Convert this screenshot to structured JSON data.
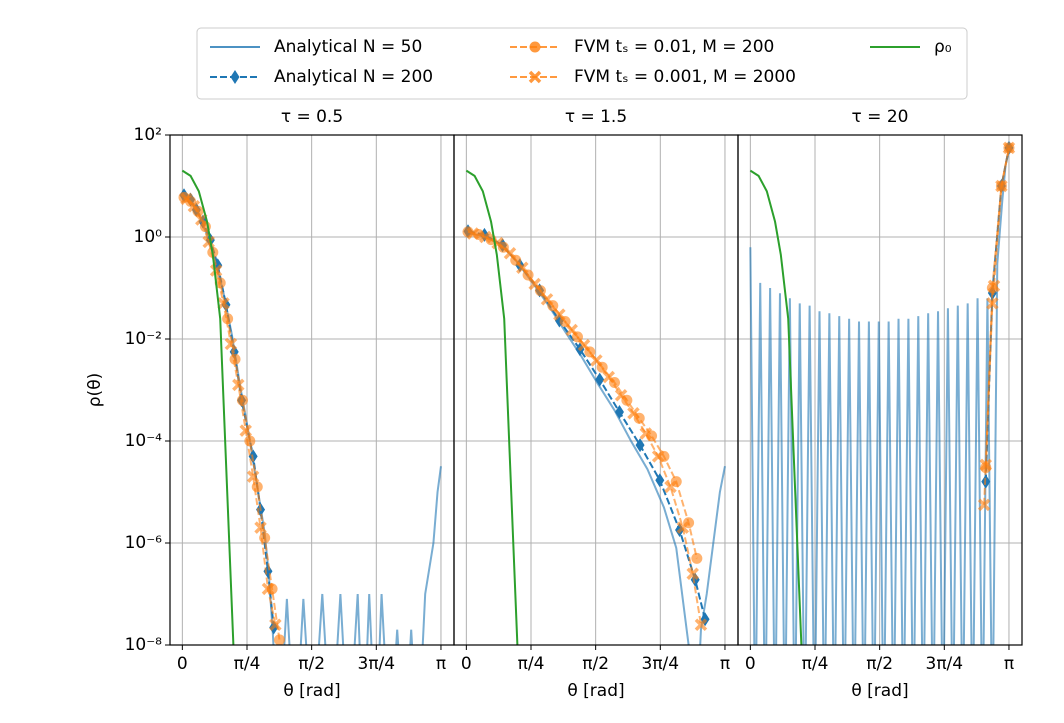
{
  "chart_data": [
    {
      "type": "line",
      "title": "τ = 0.5",
      "xlabel": "θ [rad]",
      "ylabel": "ρ(θ)",
      "yscale": "log",
      "grid": true,
      "xlim": [
        -0.15,
        3.3
      ],
      "ylim": [
        1e-08,
        100
      ],
      "xticks": [
        0,
        {
          "value": 0.7854,
          "label": "π/4"
        },
        {
          "value": 1.5708,
          "label": "π/2"
        },
        {
          "value": 2.3562,
          "label": "3π/4"
        },
        {
          "value": 3.1416,
          "label": "π"
        }
      ],
      "yticks": [
        {
          "value": 1e-08,
          "label": "10⁻⁸"
        },
        {
          "value": 1e-06,
          "label": "10⁻⁶"
        },
        {
          "value": 0.0001,
          "label": "10⁻⁴"
        },
        {
          "value": 0.01,
          "label": "10⁻²"
        },
        {
          "value": 1,
          "label": "10⁰"
        },
        {
          "value": 100,
          "label": "10²"
        }
      ],
      "series": [
        {
          "name": "Analytical N = 50",
          "color": "#1f77b4",
          "linestyle": "solid",
          "alpha": 0.6,
          "x": [
            0,
            0.1,
            0.2,
            0.3,
            0.4,
            0.5,
            0.6,
            0.7,
            0.8,
            0.9,
            1.0,
            1.05,
            1.1,
            1.17,
            1.27,
            1.37,
            1.47,
            1.58,
            1.7,
            1.81,
            1.92,
            2.02,
            2.13,
            2.2,
            2.27,
            2.35,
            2.42,
            2.52,
            2.61,
            2.7,
            2.78,
            2.86,
            2.95,
            3.05,
            3.1,
            3.1416
          ],
          "values": [
            6.3,
            5,
            2.8,
            1.1,
            0.35,
            0.08,
            0.0126,
            0.00126,
            0.00016,
            1.6e-05,
            1.6e-06,
            2.5e-07,
            1.6e-08,
            1e-10,
            8e-08,
            1e-10,
            8e-08,
            1e-10,
            1e-07,
            1e-10,
            1e-07,
            1e-10,
            1e-07,
            1e-10,
            1e-07,
            1e-10,
            1e-07,
            1e-10,
            2e-08,
            1e-10,
            2e-08,
            1e-10,
            1e-07,
            1e-06,
            1e-05,
            3.2e-05
          ]
        },
        {
          "name": "Analytical N = 200",
          "color": "#1f77b4",
          "linestyle": "dashed",
          "marker": "diamond",
          "alpha": 1,
          "x": [
            0.02,
            0.1,
            0.17,
            0.25,
            0.34,
            0.43,
            0.53,
            0.63,
            0.72,
            0.86,
            0.95,
            1.04,
            1.11
          ],
          "values": [
            6.6,
            5.4,
            3.4,
            2,
            0.87,
            0.28,
            0.047,
            0.0056,
            0.00063,
            5e-05,
            4.5e-06,
            2.8e-07,
            2.2e-08
          ]
        },
        {
          "name": "FVM tₛ = 0.01, M = 200",
          "color": "#ff7f0e",
          "linestyle": "dashed",
          "marker": "circle",
          "alpha": 0.6,
          "x": [
            0.02,
            0.1,
            0.19,
            0.28,
            0.37,
            0.46,
            0.55,
            0.64,
            0.73,
            0.82,
            0.91,
            1.0,
            1.09,
            1.18
          ],
          "values": [
            6,
            5,
            3.2,
            1.6,
            0.5,
            0.126,
            0.025,
            0.004,
            0.00063,
            0.0001,
            1.26e-05,
            1.26e-06,
            1.26e-07,
            1.26e-08
          ]
        },
        {
          "name": "FVM tₛ = 0.001, M = 2000",
          "color": "#ff7f0e",
          "linestyle": "dashed",
          "marker": "x",
          "alpha": 0.6,
          "x": [
            0.05,
            0.14,
            0.23,
            0.32,
            0.41,
            0.5,
            0.59,
            0.68,
            0.77,
            0.86,
            0.95,
            1.04,
            1.13
          ],
          "values": [
            5.6,
            4,
            2.2,
            0.8,
            0.22,
            0.05,
            0.008,
            0.00126,
            0.00016,
            2e-05,
            2e-06,
            1.26e-07,
            2.5e-08
          ]
        },
        {
          "name": "ρ₀",
          "color": "#2ca02c",
          "linestyle": "solid",
          "alpha": 1,
          "x": [
            0,
            0.1,
            0.2,
            0.3,
            0.37,
            0.46,
            0.52,
            0.57,
            0.62
          ],
          "values": [
            20,
            15.8,
            7.9,
            2,
            0.45,
            0.025,
            0.0001,
            1e-06,
            1e-08
          ]
        }
      ]
    },
    {
      "type": "line",
      "title": "τ = 1.5",
      "xlabel": "θ [rad]",
      "xlim": [
        -0.15,
        3.3
      ],
      "xticks": [
        0,
        {
          "value": 0.7854,
          "label": "π/4"
        },
        {
          "value": 1.5708,
          "label": "π/2"
        },
        {
          "value": 2.3562,
          "label": "3π/4"
        },
        {
          "value": 3.1416,
          "label": "π"
        }
      ],
      "series": [
        {
          "color": "#1f77b4",
          "linestyle": "solid",
          "alpha": 0.6,
          "x": [
            0,
            0.2,
            0.4,
            0.6,
            0.8,
            1.0,
            1.2,
            1.4,
            1.6,
            1.8,
            2.0,
            2.2,
            2.4,
            2.55,
            2.7,
            2.78,
            2.85,
            2.92,
            3.0,
            3.08,
            3.1416
          ],
          "values": [
            1.2,
            1.05,
            0.75,
            0.35,
            0.13,
            0.045,
            0.014,
            0.0045,
            0.0013,
            0.0004,
            0.0001,
            2.8e-05,
            5e-06,
            8e-07,
            1e-08,
            1e-10,
            2e-08,
            1e-07,
            1e-06,
            1e-05,
            3.2e-05
          ]
        },
        {
          "color": "#1f77b4",
          "linestyle": "dashed",
          "marker": "diamond",
          "alpha": 1,
          "x": [
            0.02,
            0.22,
            0.44,
            0.65,
            0.89,
            1.13,
            1.38,
            1.62,
            1.86,
            2.11,
            2.35,
            2.59,
            2.78,
            2.9
          ],
          "values": [
            1.3,
            1.1,
            0.69,
            0.28,
            0.09,
            0.023,
            0.0063,
            0.0016,
            0.00037,
            8.3e-05,
            1.7e-05,
            1.8e-06,
            1.9e-07,
            3.2e-08
          ]
        },
        {
          "color": "#ff7f0e",
          "linestyle": "dashed",
          "marker": "circle",
          "alpha": 0.6,
          "x": [
            0.02,
            0.15,
            0.3,
            0.45,
            0.6,
            0.75,
            0.9,
            1.05,
            1.2,
            1.35,
            1.5,
            1.65,
            1.8,
            1.95,
            2.1,
            2.25,
            2.4,
            2.55,
            2.7,
            2.8
          ],
          "values": [
            1.26,
            1.12,
            0.89,
            0.63,
            0.35,
            0.18,
            0.089,
            0.045,
            0.022,
            0.011,
            0.0056,
            0.0028,
            0.0014,
            0.00063,
            0.00028,
            0.000126,
            5e-05,
            1.6e-05,
            2.5e-06,
            5e-07
          ]
        },
        {
          "color": "#ff7f0e",
          "linestyle": "dashed",
          "marker": "x",
          "alpha": 0.6,
          "x": [
            0.08,
            0.23,
            0.38,
            0.53,
            0.68,
            0.83,
            0.98,
            1.13,
            1.28,
            1.43,
            1.58,
            1.73,
            1.88,
            2.03,
            2.18,
            2.33,
            2.48,
            2.63,
            2.75,
            2.85
          ],
          "values": [
            1.17,
            1,
            0.76,
            0.48,
            0.25,
            0.12,
            0.06,
            0.03,
            0.015,
            0.0076,
            0.0038,
            0.0018,
            0.00079,
            0.00035,
            0.00014,
            5e-05,
            1.26e-05,
            2e-06,
            2.5e-07,
            2.5e-08
          ]
        },
        {
          "color": "#2ca02c",
          "linestyle": "solid",
          "alpha": 1,
          "x": [
            0,
            0.1,
            0.2,
            0.3,
            0.37,
            0.46,
            0.52,
            0.57,
            0.62
          ],
          "values": [
            20,
            15.8,
            7.9,
            2,
            0.45,
            0.025,
            0.0001,
            1e-06,
            1e-08
          ]
        }
      ]
    },
    {
      "type": "line",
      "title": "τ = 20",
      "xlabel": "θ [rad]",
      "xlim": [
        -0.15,
        3.3
      ],
      "xticks": [
        0,
        {
          "value": 0.7854,
          "label": "π/4"
        },
        {
          "value": 1.5708,
          "label": "π/2"
        },
        {
          "value": 2.3562,
          "label": "3π/4"
        },
        {
          "value": 3.1416,
          "label": "π"
        }
      ],
      "series": [
        {
          "color": "#1f77b4",
          "linestyle": "solid",
          "alpha": 0.6,
          "x": [
            0,
            0.06,
            0.12,
            0.18,
            0.24,
            0.3,
            0.36,
            0.42,
            0.48,
            0.54,
            0.6,
            0.66,
            0.72,
            0.78,
            0.84,
            0.9,
            0.96,
            1.02,
            1.08,
            1.14,
            1.2,
            1.26,
            1.32,
            1.38,
            1.44,
            1.5,
            1.56,
            1.62,
            1.68,
            1.74,
            1.8,
            1.86,
            1.92,
            1.98,
            2.04,
            2.1,
            2.16,
            2.22,
            2.28,
            2.34,
            2.4,
            2.46,
            2.52,
            2.58,
            2.64,
            2.7,
            2.76,
            2.82,
            2.88,
            2.94,
            3.0,
            3.06,
            3.1,
            3.1416
          ],
          "values": [
            0.63,
            1e-10,
            0.126,
            1e-10,
            0.1,
            1e-10,
            0.079,
            1e-10,
            0.063,
            1e-10,
            0.05,
            1e-10,
            0.045,
            1e-10,
            0.035,
            1e-10,
            0.032,
            1e-10,
            0.028,
            1e-10,
            0.025,
            1e-10,
            0.022,
            1e-10,
            0.022,
            1e-10,
            0.022,
            1e-10,
            0.022,
            1e-10,
            0.025,
            1e-10,
            0.025,
            1e-10,
            0.028,
            1e-10,
            0.032,
            1e-10,
            0.035,
            1e-10,
            0.04,
            1e-10,
            0.045,
            1e-10,
            0.05,
            1e-10,
            0.063,
            1e-10,
            0.063,
            1e-10,
            0.3,
            5,
            25,
            50
          ]
        },
        {
          "color": "#1f77b4",
          "linestyle": "dashed",
          "marker": "diamond",
          "alpha": 1,
          "x": [
            2.86,
            2.94,
            3.05,
            3.1416
          ],
          "values": [
            1.6e-05,
            0.08,
            10,
            56
          ]
        },
        {
          "color": "#ff7f0e",
          "linestyle": "dashed",
          "marker": "circle",
          "alpha": 0.6,
          "x": [
            2.86,
            2.94,
            3.05,
            3.1416
          ],
          "values": [
            3e-05,
            0.1,
            10,
            56
          ]
        },
        {
          "color": "#ff7f0e",
          "linestyle": "dashed",
          "marker": "x",
          "alpha": 0.6,
          "x": [
            2.84,
            2.86,
            2.94,
            2.96,
            3.05,
            3.1416
          ],
          "values": [
            5.6e-06,
            3.4e-05,
            0.05,
            0.11,
            10,
            56
          ]
        },
        {
          "color": "#2ca02c",
          "linestyle": "solid",
          "alpha": 1,
          "x": [
            0,
            0.1,
            0.2,
            0.3,
            0.37,
            0.46,
            0.52,
            0.57,
            0.62
          ],
          "values": [
            20,
            15.8,
            7.9,
            2,
            0.45,
            0.025,
            0.0001,
            1e-06,
            1e-08
          ]
        }
      ]
    }
  ]
}
